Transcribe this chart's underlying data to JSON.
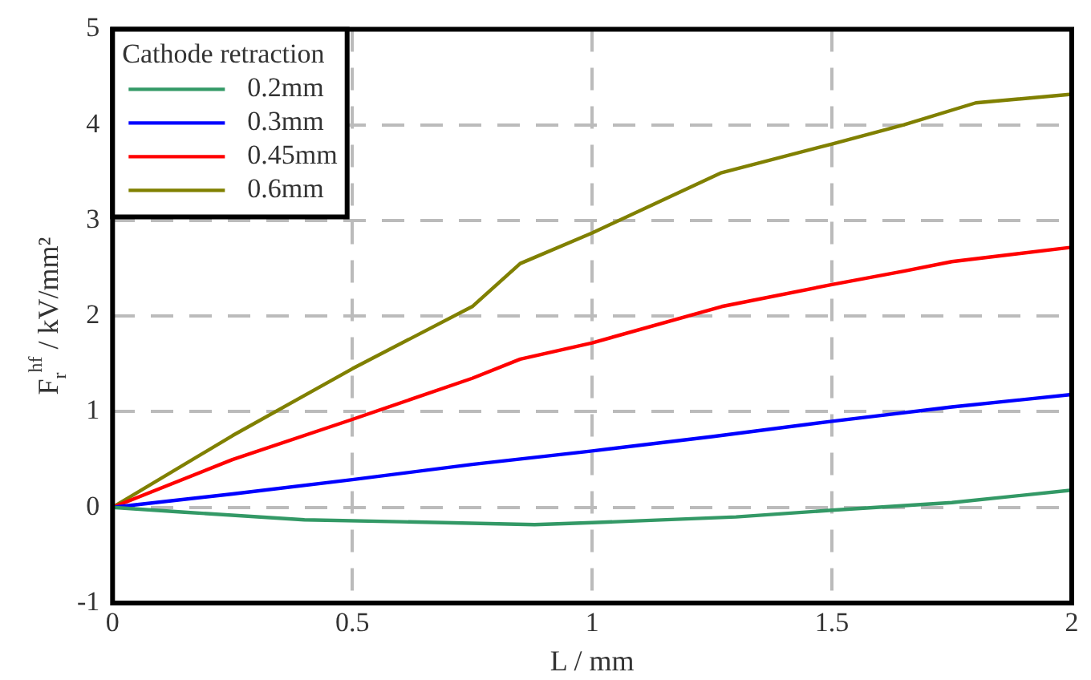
{
  "chart_data": {
    "type": "line",
    "xlabel": "L / mm",
    "ylabel": "F$_{r}$$^{hf}$ / kV/mm²",
    "legend_title": "Cathode retraction",
    "legend": "top left",
    "grid": true,
    "line_style": "solid",
    "marker": "none",
    "xlim": [
      0,
      2
    ],
    "xticks": [
      0,
      0.5,
      1,
      1.5,
      2
    ],
    "ylim": [
      -1,
      5
    ],
    "yticks": [
      -1,
      0,
      1,
      2,
      3,
      4,
      5
    ],
    "series": [
      {
        "name": "0.2mm",
        "color": "#339966",
        "x": [
          0,
          0.15,
          0.4,
          0.6,
          0.88,
          1.0,
          1.3,
          1.5,
          1.75,
          2
        ],
        "values": [
          0,
          -0.05,
          -0.13,
          -0.15,
          -0.18,
          -0.16,
          -0.1,
          -0.03,
          0.05,
          0.18
        ]
      },
      {
        "name": "0.3mm",
        "color": "#0000ff",
        "x": [
          0,
          0.25,
          0.5,
          0.75,
          1.0,
          1.25,
          1.5,
          1.75,
          2
        ],
        "values": [
          0,
          0.14,
          0.29,
          0.45,
          0.59,
          0.74,
          0.9,
          1.05,
          1.18
        ]
      },
      {
        "name": "0.45mm",
        "color": "#ff0000",
        "x": [
          0,
          0.25,
          0.5,
          0.75,
          0.85,
          1.0,
          1.27,
          1.5,
          1.65,
          1.75,
          2
        ],
        "values": [
          0,
          0.5,
          0.92,
          1.35,
          1.55,
          1.72,
          2.1,
          2.33,
          2.47,
          2.57,
          2.72
        ]
      },
      {
        "name": "0.6mm",
        "color": "#808000",
        "x": [
          0,
          0.25,
          0.5,
          0.75,
          0.85,
          1.0,
          1.27,
          1.5,
          1.65,
          1.8,
          2
        ],
        "values": [
          0,
          0.75,
          1.45,
          2.1,
          2.55,
          2.87,
          3.5,
          3.8,
          4.0,
          4.23,
          4.32
        ]
      }
    ]
  }
}
